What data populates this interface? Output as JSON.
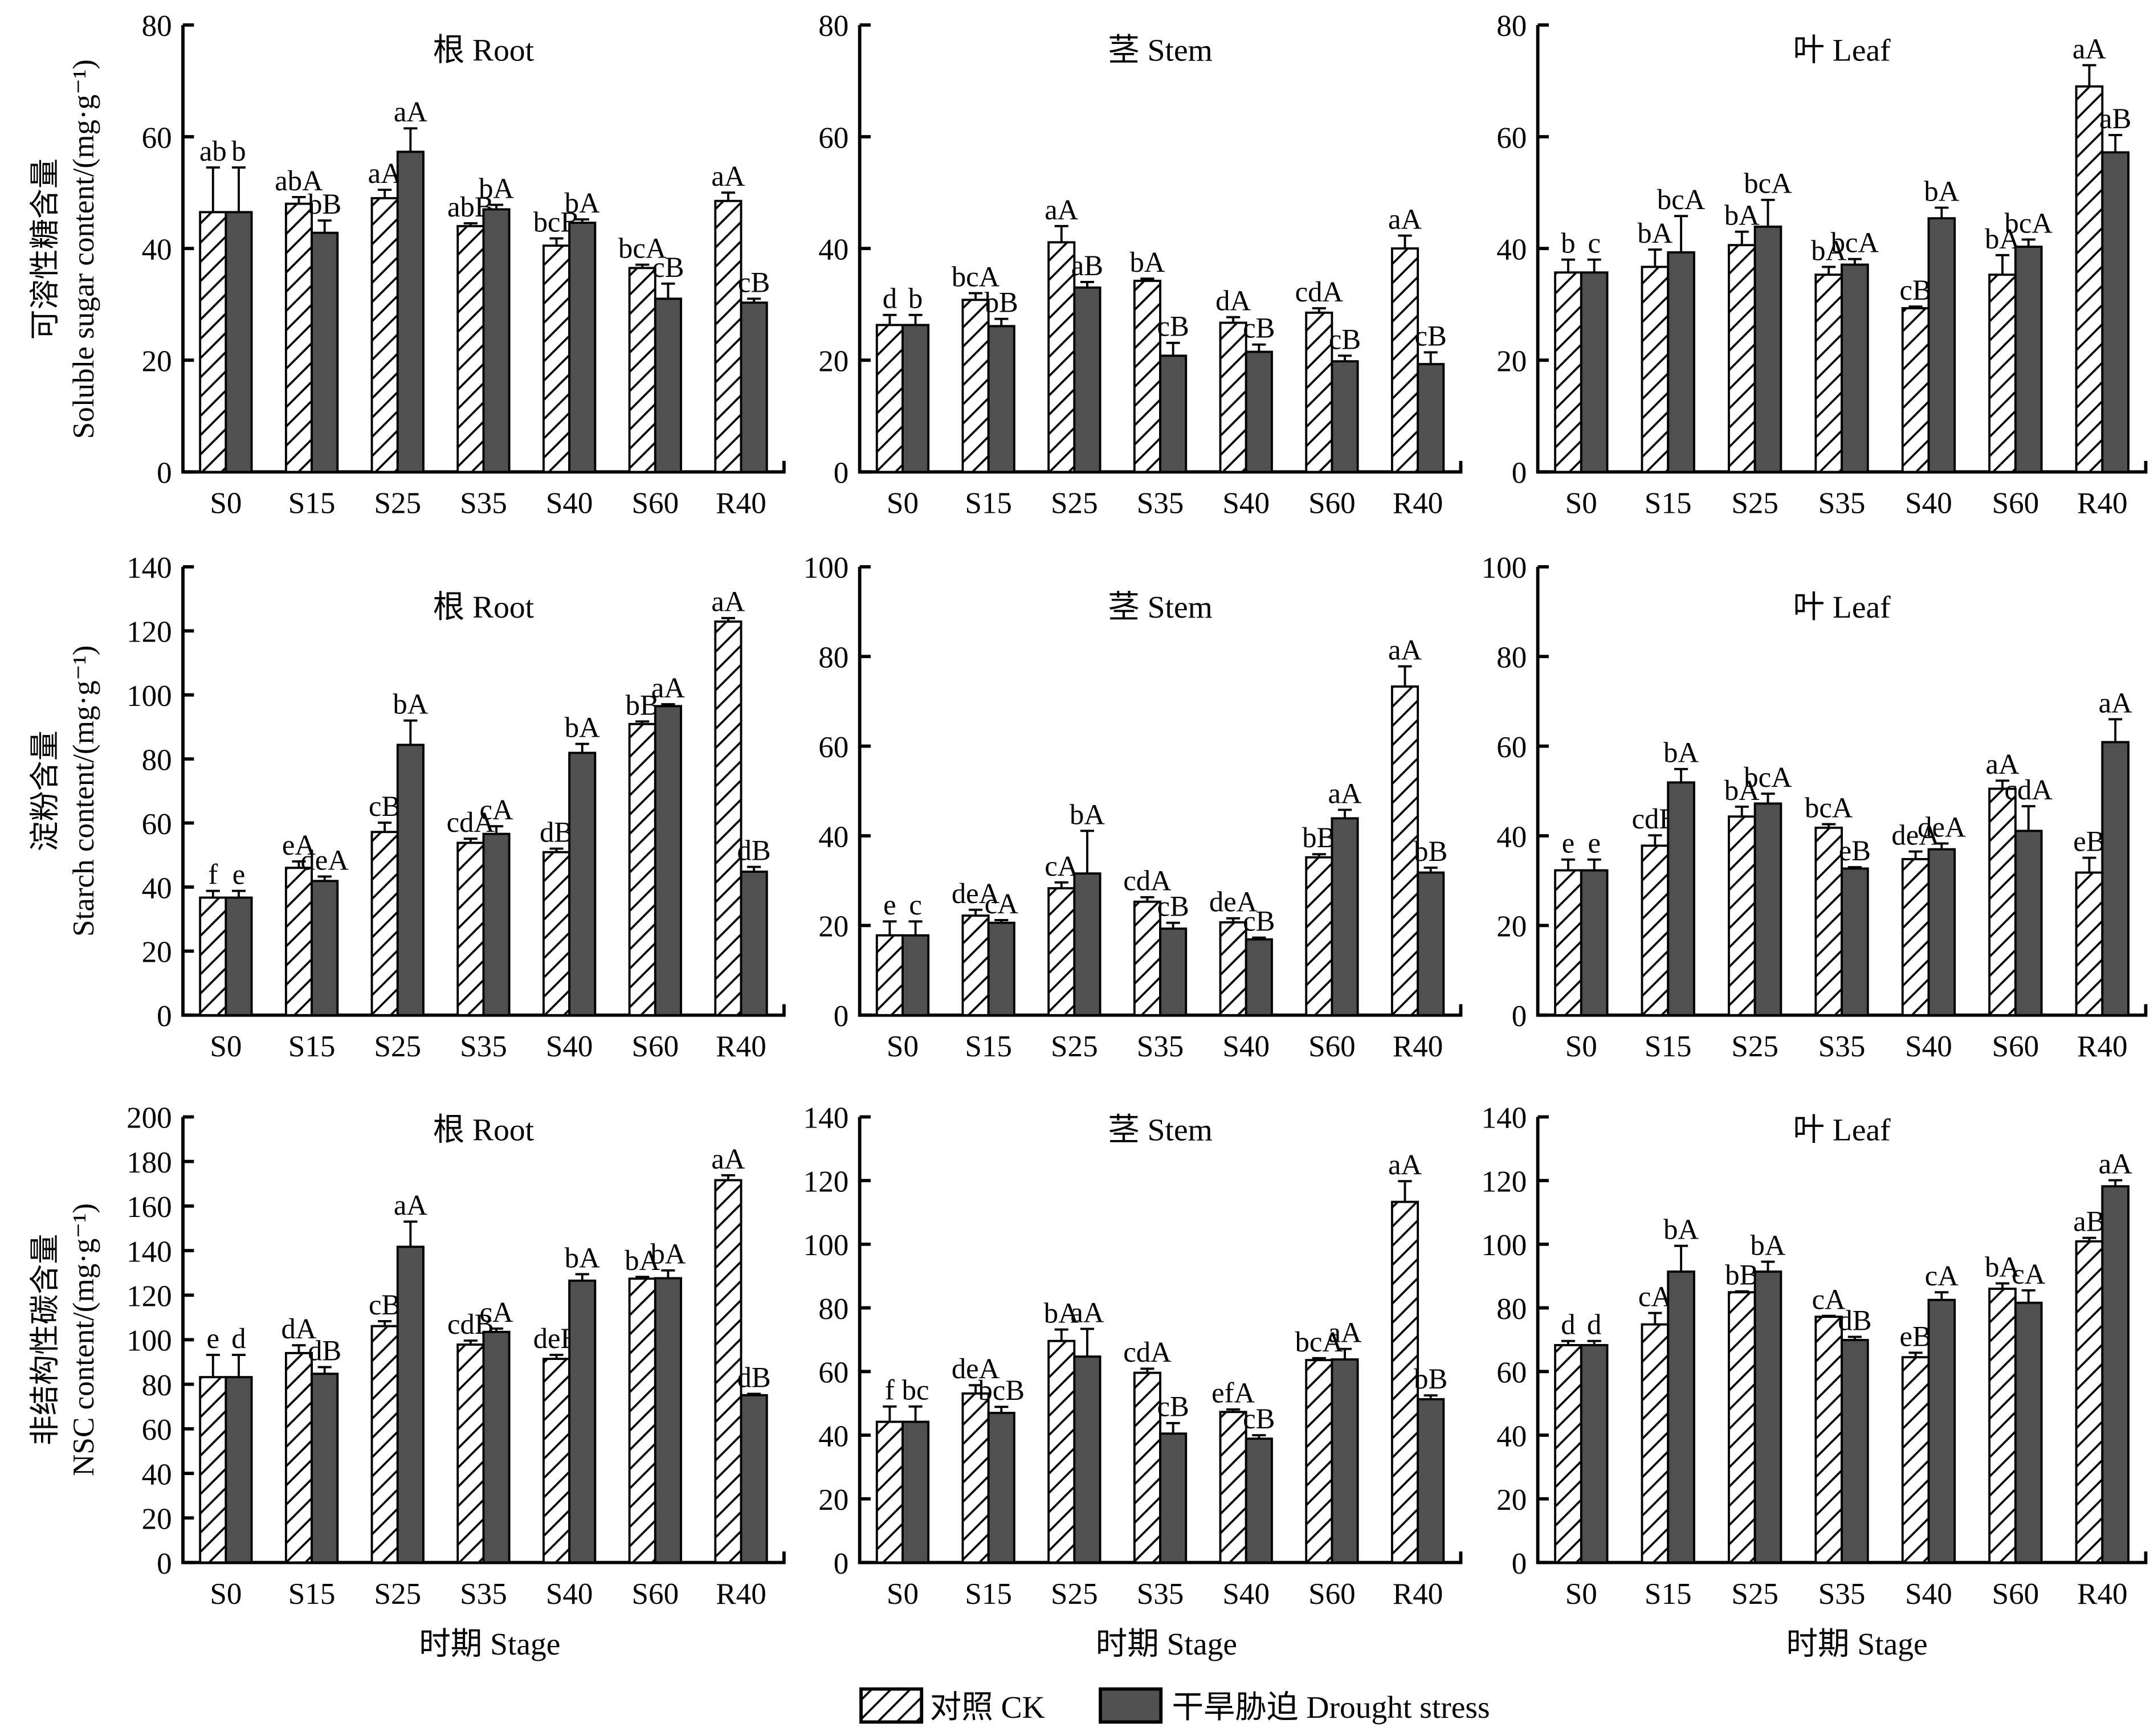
{
  "figure": {
    "stage_label": "时期 Stage",
    "legend": [
      {
        "label": "对照 CK",
        "pattern": "hatch",
        "color": "#ffffff"
      },
      {
        "label": "干旱胁迫 Drought stress",
        "pattern": "solid",
        "color": "#505050"
      }
    ],
    "row_ylabels": [
      {
        "cn": "可溶性糖含量",
        "en": "Soluble sugar content/(mg·g⁻¹)"
      },
      {
        "cn": "淀粉含量",
        "en": "Starch content/(mg·g⁻¹)"
      },
      {
        "cn": "非结构性碳含量",
        "en": "NSC content/(mg·g⁻¹)"
      }
    ],
    "colors": {
      "ck_fill": "#ffffff",
      "drought_fill": "#505050",
      "axis": "#000000"
    }
  },
  "chart_data": [
    {
      "type": "bar",
      "row": 0,
      "col": 0,
      "title": "根 Root",
      "xlabel": "",
      "ylabel": "可溶性糖含量 Soluble sugar content/(mg·g⁻¹)",
      "categories": [
        "S0",
        "S15",
        "S25",
        "S35",
        "S40",
        "S60",
        "R40"
      ],
      "ylim": [
        0,
        80
      ],
      "yticks": [
        0,
        20,
        40,
        60,
        80
      ],
      "series": [
        {
          "name": "对照 CK",
          "values": [
            46.5,
            48.0,
            49.0,
            44.0,
            40.5,
            36.5,
            48.5
          ],
          "errors": [
            8.0,
            1.2,
            1.5,
            0.5,
            1.3,
            0.6,
            1.5
          ],
          "labels": [
            "ab",
            "abA",
            "aA",
            "abB",
            "bcB",
            "bcA",
            "aA"
          ]
        },
        {
          "name": "干旱胁迫 Drought stress",
          "values": [
            46.5,
            42.8,
            57.3,
            47.0,
            44.6,
            31.0,
            30.3
          ],
          "errors": [
            8.0,
            2.2,
            4.2,
            0.8,
            0.6,
            2.7,
            0.7
          ],
          "labels": [
            "b",
            "bB",
            "aA",
            "bA",
            "bA",
            "cB",
            "cB"
          ]
        }
      ]
    },
    {
      "type": "bar",
      "row": 0,
      "col": 1,
      "title": "茎 Stem",
      "xlabel": "",
      "ylabel": "",
      "categories": [
        "S0",
        "S15",
        "S25",
        "S35",
        "S40",
        "S60",
        "R40"
      ],
      "ylim": [
        0,
        80
      ],
      "yticks": [
        0,
        20,
        40,
        60,
        80
      ],
      "series": [
        {
          "name": "对照 CK",
          "values": [
            26.3,
            30.8,
            41.1,
            34.2,
            26.7,
            28.5,
            40.0
          ],
          "errors": [
            1.8,
            1.2,
            2.9,
            0.4,
            1.0,
            0.8,
            2.3
          ],
          "labels": [
            "d",
            "bcA",
            "aA",
            "bA",
            "dA",
            "cdA",
            "aA"
          ]
        },
        {
          "name": "干旱胁迫 Drought stress",
          "values": [
            26.3,
            26.1,
            33.0,
            20.8,
            21.5,
            19.8,
            19.3
          ],
          "errors": [
            1.8,
            1.3,
            1.0,
            2.3,
            1.3,
            1.0,
            2.1
          ],
          "labels": [
            "b",
            "bB",
            "aB",
            "cB",
            "cB",
            "cB",
            "cB"
          ]
        }
      ]
    },
    {
      "type": "bar",
      "row": 0,
      "col": 2,
      "title": "叶 Leaf",
      "xlabel": "",
      "ylabel": "",
      "categories": [
        "S0",
        "S15",
        "S25",
        "S35",
        "S40",
        "S60",
        "R40"
      ],
      "ylim": [
        0,
        80
      ],
      "yticks": [
        0,
        20,
        40,
        60,
        80
      ],
      "series": [
        {
          "name": "对照 CK",
          "values": [
            35.7,
            36.7,
            40.6,
            35.3,
            29.3,
            35.3,
            69.0
          ],
          "errors": [
            2.3,
            3.1,
            2.4,
            1.4,
            0.3,
            3.5,
            3.8
          ],
          "labels": [
            "b",
            "bA",
            "bA",
            "bA",
            "cB",
            "bA",
            "aA"
          ]
        },
        {
          "name": "干旱胁迫 Drought stress",
          "values": [
            35.7,
            39.3,
            43.9,
            37.1,
            45.4,
            40.3,
            57.2
          ],
          "errors": [
            2.3,
            6.5,
            4.8,
            1.0,
            1.9,
            1.3,
            3.1
          ],
          "labels": [
            "c",
            "bcA",
            "bcA",
            "bcA",
            "bA",
            "bcA",
            "aB"
          ]
        }
      ]
    },
    {
      "type": "bar",
      "row": 1,
      "col": 0,
      "title": "根 Root",
      "xlabel": "",
      "ylabel": "淀粉含量 Starch content/(mg·g⁻¹)",
      "categories": [
        "S0",
        "S15",
        "S25",
        "S35",
        "S40",
        "S60",
        "R40"
      ],
      "ylim": [
        0,
        140
      ],
      "yticks": [
        0,
        20,
        40,
        60,
        80,
        100,
        120,
        140
      ],
      "series": [
        {
          "name": "对照 CK",
          "values": [
            36.7,
            46.0,
            57.2,
            53.8,
            50.9,
            90.9,
            122.9
          ],
          "errors": [
            2.1,
            2.0,
            2.9,
            1.3,
            1.1,
            0.8,
            1.1
          ],
          "labels": [
            "f",
            "eA",
            "cB",
            "cdA",
            "dB",
            "bB",
            "aA"
          ]
        },
        {
          "name": "干旱胁迫 Drought stress",
          "values": [
            36.7,
            41.9,
            84.4,
            56.6,
            81.9,
            96.5,
            44.8
          ],
          "errors": [
            2.1,
            1.4,
            7.6,
            2.4,
            2.8,
            0.6,
            1.5
          ],
          "labels": [
            "e",
            "deA",
            "bA",
            "cA",
            "bA",
            "aA",
            "dB"
          ]
        }
      ]
    },
    {
      "type": "bar",
      "row": 1,
      "col": 1,
      "title": "茎 Stem",
      "xlabel": "",
      "ylabel": "",
      "categories": [
        "S0",
        "S15",
        "S25",
        "S35",
        "S40",
        "S60",
        "R40"
      ],
      "ylim": [
        0,
        100
      ],
      "yticks": [
        0,
        20,
        40,
        60,
        80,
        100
      ],
      "series": [
        {
          "name": "对照 CK",
          "values": [
            17.8,
            22.2,
            28.3,
            25.3,
            20.7,
            35.2,
            73.3
          ],
          "errors": [
            3.1,
            1.3,
            1.3,
            1.0,
            0.9,
            0.7,
            4.5
          ],
          "labels": [
            "e",
            "deA",
            "cA",
            "cdA",
            "deA",
            "bB",
            "aA"
          ]
        },
        {
          "name": "干旱胁迫 Drought stress",
          "values": [
            17.8,
            20.6,
            31.6,
            19.3,
            16.9,
            43.9,
            31.8
          ],
          "errors": [
            3.1,
            0.6,
            9.5,
            1.3,
            0.4,
            1.9,
            1.1
          ],
          "labels": [
            "c",
            "cA",
            "bA",
            "cB",
            "cB",
            "aA",
            "bB"
          ]
        }
      ]
    },
    {
      "type": "bar",
      "row": 1,
      "col": 2,
      "title": "叶 Leaf",
      "xlabel": "",
      "ylabel": "",
      "categories": [
        "S0",
        "S15",
        "S25",
        "S35",
        "S40",
        "S60",
        "R40"
      ],
      "ylim": [
        0,
        100
      ],
      "yticks": [
        0,
        20,
        40,
        60,
        80,
        100
      ],
      "series": [
        {
          "name": "对照 CK",
          "values": [
            32.3,
            37.8,
            44.3,
            41.8,
            34.8,
            50.5,
            31.8
          ],
          "errors": [
            2.4,
            2.3,
            2.2,
            0.8,
            1.7,
            1.8,
            3.3
          ],
          "labels": [
            "e",
            "cdB",
            "bA",
            "bcA",
            "deA",
            "aA",
            "eB"
          ]
        },
        {
          "name": "干旱胁迫 Drought stress",
          "values": [
            32.3,
            51.9,
            47.2,
            32.7,
            37.0,
            41.1,
            60.9
          ],
          "errors": [
            2.4,
            3.0,
            2.2,
            0.3,
            1.3,
            5.5,
            5.1
          ],
          "labels": [
            "e",
            "bA",
            "bcA",
            "eB",
            "deA",
            "cdA",
            "aA"
          ]
        }
      ]
    },
    {
      "type": "bar",
      "row": 2,
      "col": 0,
      "title": "根 Root",
      "xlabel": "时期 Stage",
      "ylabel": "非结构性碳含量 NSC content/(mg·g⁻¹)",
      "categories": [
        "S0",
        "S15",
        "S25",
        "S35",
        "S40",
        "S60",
        "R40"
      ],
      "ylim": [
        0,
        200
      ],
      "yticks": [
        0,
        20,
        40,
        60,
        80,
        100,
        120,
        140,
        160,
        180,
        200
      ],
      "series": [
        {
          "name": "对照 CK",
          "values": [
            83.2,
            94.0,
            106.1,
            97.8,
            91.4,
            127.4,
            171.6
          ],
          "errors": [
            10.0,
            3.5,
            2.2,
            1.8,
            1.8,
            0.8,
            2.2
          ],
          "labels": [
            "e",
            "dA",
            "cB",
            "cdB",
            "deB",
            "bA",
            "aA"
          ]
        },
        {
          "name": "干旱胁迫 Drought stress",
          "values": [
            83.2,
            84.7,
            141.7,
            103.5,
            126.5,
            127.6,
            75.1
          ],
          "errors": [
            10.0,
            3.0,
            11.3,
            1.5,
            2.9,
            3.5,
            0.6
          ],
          "labels": [
            "d",
            "dB",
            "aA",
            "cA",
            "bA",
            "bA",
            "dB"
          ]
        }
      ]
    },
    {
      "type": "bar",
      "row": 2,
      "col": 1,
      "title": "茎 Stem",
      "xlabel": "时期 Stage",
      "ylabel": "",
      "categories": [
        "S0",
        "S15",
        "S25",
        "S35",
        "S40",
        "S60",
        "R40"
      ],
      "ylim": [
        0,
        140
      ],
      "yticks": [
        0,
        20,
        40,
        60,
        80,
        100,
        120,
        140
      ],
      "series": [
        {
          "name": "对照 CK",
          "values": [
            44.2,
            53.1,
            69.6,
            59.6,
            47.3,
            63.6,
            113.3
          ],
          "errors": [
            4.8,
            2.6,
            3.6,
            1.3,
            0.8,
            0.6,
            6.5
          ],
          "labels": [
            "f",
            "deA",
            "bA",
            "cdA",
            "efA",
            "bcA",
            "aA"
          ]
        },
        {
          "name": "干旱胁迫 Drought stress",
          "values": [
            44.2,
            47.0,
            64.7,
            40.5,
            38.9,
            63.8,
            51.3
          ],
          "errors": [
            4.8,
            1.9,
            8.7,
            3.3,
            1.1,
            3.3,
            1.2
          ],
          "labels": [
            "bc",
            "bcB",
            "aA",
            "cB",
            "cB",
            "aA",
            "bB"
          ]
        }
      ]
    },
    {
      "type": "bar",
      "row": 2,
      "col": 2,
      "title": "叶 Leaf",
      "xlabel": "时期 Stage",
      "ylabel": "",
      "categories": [
        "S0",
        "S15",
        "S25",
        "S35",
        "S40",
        "S60",
        "R40"
      ],
      "ylim": [
        0,
        140
      ],
      "yticks": [
        0,
        20,
        40,
        60,
        80,
        100,
        120,
        140
      ],
      "series": [
        {
          "name": "对照 CK",
          "values": [
            68.3,
            74.8,
            84.9,
            77.2,
            64.5,
            86.0,
            100.9
          ],
          "errors": [
            1.3,
            3.6,
            0.3,
            0.3,
            1.4,
            1.7,
            1.1
          ],
          "labels": [
            "d",
            "cA",
            "bB",
            "cA",
            "eB",
            "bA",
            "aB"
          ]
        },
        {
          "name": "干旱胁迫 Drought stress",
          "values": [
            68.3,
            91.4,
            91.4,
            69.9,
            82.5,
            81.6,
            118.2
          ],
          "errors": [
            1.3,
            8.1,
            3.1,
            1.0,
            2.4,
            3.9,
            1.9
          ],
          "labels": [
            "d",
            "bA",
            "bA",
            "dB",
            "cA",
            "cA",
            "aA"
          ]
        }
      ]
    }
  ]
}
